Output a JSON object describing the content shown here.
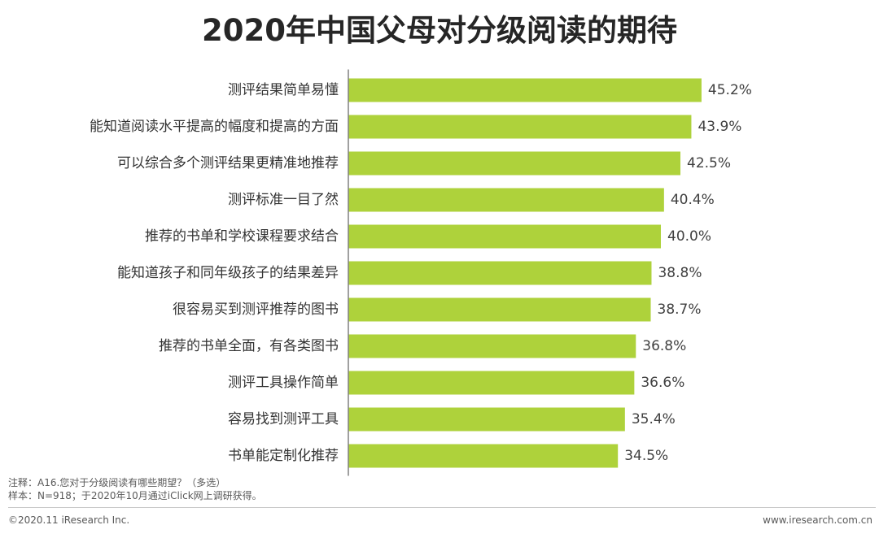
{
  "title": "2020年中国父母对分级阅读的期待",
  "chart_data": {
    "type": "bar",
    "orientation": "horizontal",
    "title": "2020年中国父母对分级阅读的期待",
    "categories": [
      "测评结果简单易懂",
      "能知道阅读水平提高的幅度和提高的方面",
      "可以综合多个测评结果更精准地推荐",
      "测评标准一目了然",
      "推荐的书单和学校课程要求结合",
      "能知道孩子和同年级孩子的结果差异",
      "很容易买到测评推荐的图书",
      "推荐的书单全面，有各类图书",
      "测评工具操作简单",
      "容易找到测评工具",
      "书单能定制化推荐"
    ],
    "values": [
      45.2,
      43.9,
      42.5,
      40.4,
      40.0,
      38.8,
      38.7,
      36.8,
      36.6,
      35.4,
      34.5
    ],
    "value_labels": [
      "45.2%",
      "43.9%",
      "42.5%",
      "40.4%",
      "40.0%",
      "38.8%",
      "38.7%",
      "36.8%",
      "36.6%",
      "35.4%",
      "34.5%"
    ],
    "xlim": [
      0,
      50
    ],
    "bar_color": "#aed23b",
    "grid": false
  },
  "notes": {
    "note": "注释：A16.您对于分级阅读有哪些期望？（多选）",
    "sample": "样本：N=918；于2020年10月通过iClick网上调研获得。"
  },
  "footer": {
    "copyright": "©2020.11 iResearch Inc.",
    "website": "www.iresearch.com.cn"
  }
}
